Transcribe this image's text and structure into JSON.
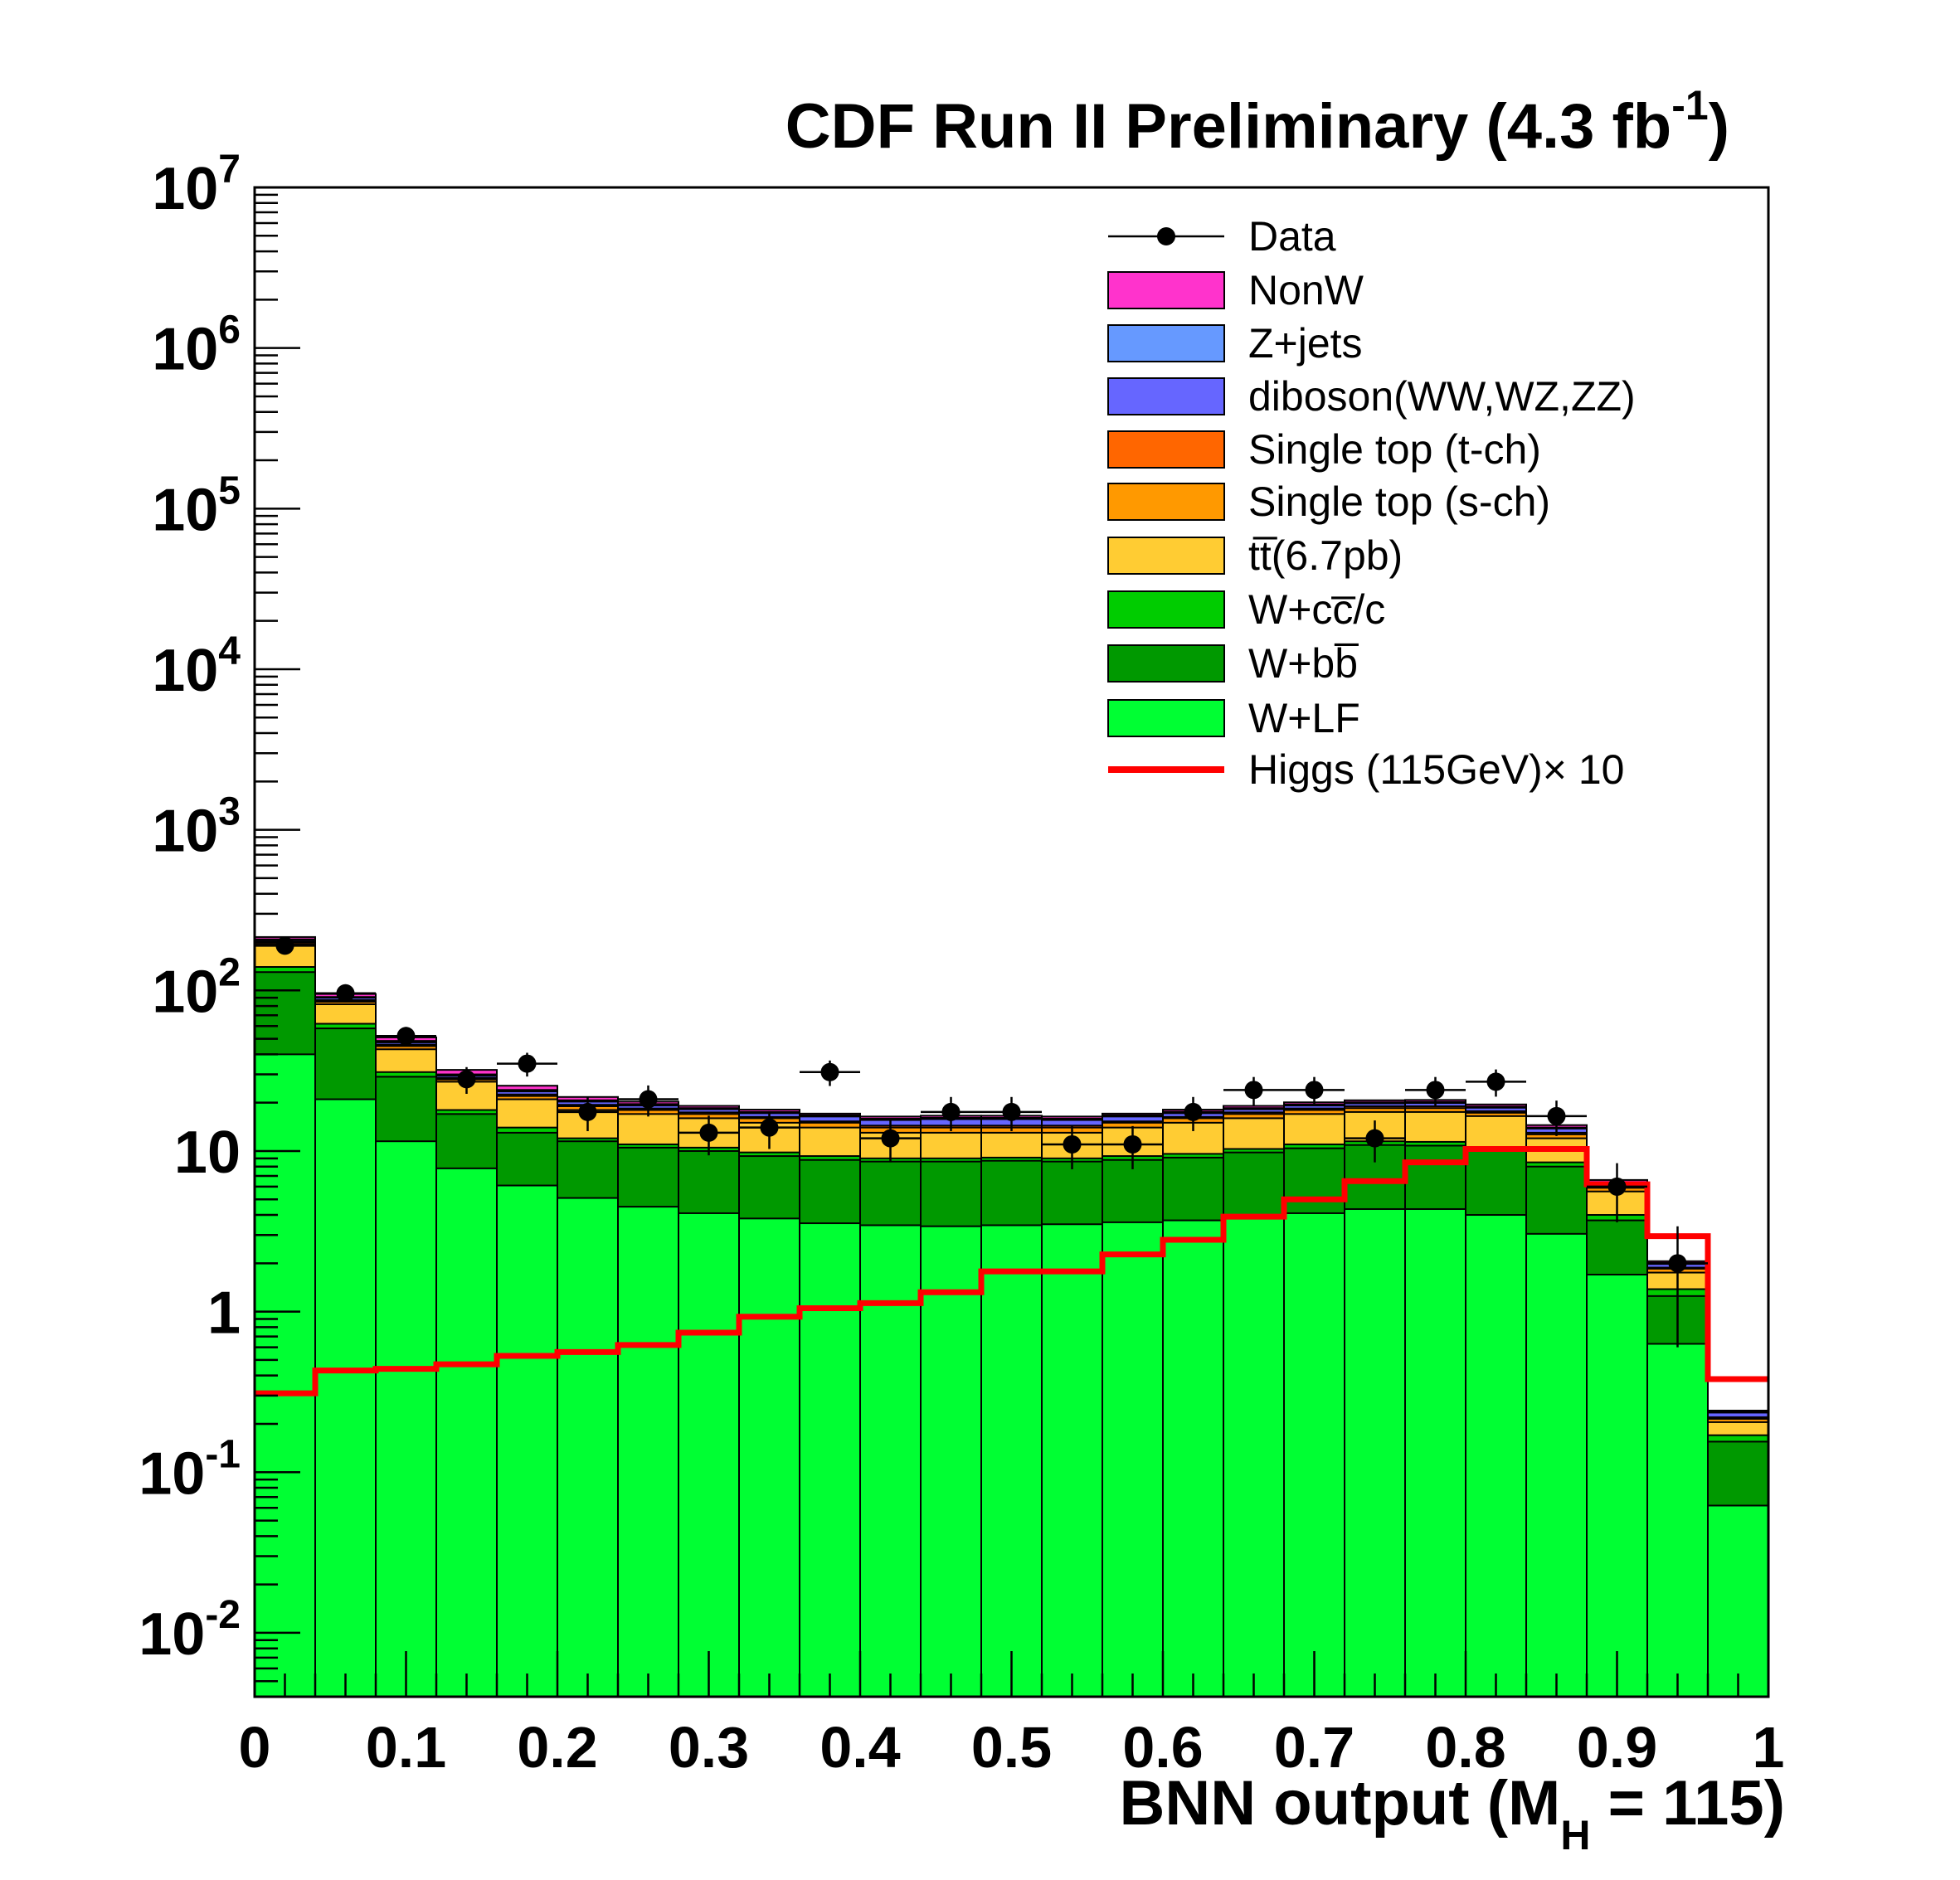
{
  "chart_data": {
    "type": "bar",
    "title": "CDF Run II Preliminary (4.3 fb",
    "title_exponent": "-1",
    "title_close": ")",
    "xlabel": "BNN output (M",
    "xlabel_subscript": "H",
    "xlabel_close": " = 115)",
    "ylabel": "",
    "log_y": true,
    "xlim": [
      0,
      1
    ],
    "ylim": [
      0.004,
      10000000
    ],
    "grid": false,
    "legend_position": "top-right",
    "x_ticks": [
      "0",
      "0.1",
      "0.2",
      "0.3",
      "0.4",
      "0.5",
      "0.6",
      "0.7",
      "0.8",
      "0.9",
      "1"
    ],
    "y_ticks": [
      {
        "base": "10",
        "exp": "-2",
        "value": 0.01
      },
      {
        "base": "10",
        "exp": "-1",
        "value": 0.1
      },
      {
        "base": "1",
        "exp": "",
        "value": 1
      },
      {
        "base": "10",
        "exp": "",
        "value": 10
      },
      {
        "base": "10",
        "exp": "2",
        "value": 100
      },
      {
        "base": "10",
        "exp": "3",
        "value": 1000
      },
      {
        "base": "10",
        "exp": "4",
        "value": 10000
      },
      {
        "base": "10",
        "exp": "5",
        "value": 100000
      },
      {
        "base": "10",
        "exp": "6",
        "value": 1000000
      },
      {
        "base": "10",
        "exp": "7",
        "value": 10000000
      }
    ],
    "bin_edges": [
      0,
      0.04,
      0.08,
      0.12,
      0.16,
      0.2,
      0.24,
      0.28,
      0.32,
      0.36,
      0.4,
      0.44,
      0.48,
      0.52,
      0.56,
      0.6,
      0.64,
      0.68,
      0.72,
      0.76,
      0.8,
      0.84,
      0.88,
      0.92,
      0.96,
      1.0
    ],
    "stacked_series": [
      {
        "name": "W+LF",
        "color": "#00ff33",
        "cumulative": [
          40,
          21,
          11.5,
          7.8,
          6.1,
          5.1,
          4.5,
          4.1,
          3.8,
          3.55,
          3.45,
          3.4,
          3.45,
          3.5,
          3.6,
          3.7,
          3.9,
          4.1,
          4.35,
          4.35,
          4.0,
          3.05,
          1.7,
          0.63,
          0.062
        ]
      },
      {
        "name": "W+bb̅",
        "color": "#009900",
        "cumulative": [
          130,
          58,
          29,
          17,
          13,
          11.5,
          10.5,
          10,
          9.3,
          8.8,
          8.6,
          8.6,
          8.7,
          8.6,
          8.8,
          9.1,
          9.8,
          10.4,
          10.9,
          10.8,
          10.0,
          8.0,
          3.7,
          1.25,
          0.155
        ]
      },
      {
        "name": "W+cc̅/c",
        "color": "#00cc00",
        "cumulative": [
          140,
          62,
          31,
          18,
          14,
          12,
          11,
          10.5,
          9.8,
          9.3,
          9.0,
          9.0,
          9.1,
          9.0,
          9.3,
          9.6,
          10.3,
          11.0,
          11.5,
          11.4,
          10.6,
          8.5,
          4.0,
          1.38,
          0.17
        ]
      },
      {
        "name": "tt̅(6.7pb)",
        "color": "#ffcc33",
        "cumulative": [
          190,
          82,
          43,
          27,
          21,
          18,
          17,
          16,
          15,
          14,
          13,
          13,
          13,
          13,
          14,
          15,
          16,
          17,
          17.5,
          17.5,
          16.5,
          12,
          5.6,
          1.75,
          0.205
        ]
      },
      {
        "name": "Single top (s-ch)",
        "color": "#ff9900",
        "cumulative": [
          195,
          85,
          45,
          28,
          22,
          19,
          18,
          17,
          16,
          15,
          14,
          14,
          14,
          14,
          15,
          16,
          17,
          18,
          18.5,
          18.5,
          17.3,
          12.7,
          5.9,
          1.85,
          0.215
        ]
      },
      {
        "name": "Single top (t-ch)",
        "color": "#ff6600",
        "cumulative": [
          200,
          87,
          46,
          28.6,
          22.5,
          19.4,
          18.4,
          17.4,
          16.3,
          15.3,
          14.4,
          14.4,
          14.4,
          14.4,
          15.3,
          16.3,
          17.4,
          18.4,
          19,
          19,
          17.7,
          13,
          6.0,
          1.88,
          0.22
        ]
      },
      {
        "name": "diboson(WW,WZ,ZZ)",
        "color": "#6666ff",
        "cumulative": [
          205,
          90,
          47.5,
          29.5,
          23.5,
          20.3,
          19.2,
          18.2,
          17.2,
          16.4,
          15.6,
          15.8,
          15.8,
          15.6,
          16.4,
          17.2,
          18.2,
          19.2,
          19.8,
          19.9,
          18.6,
          13.8,
          6.3,
          1.98,
          0.235
        ]
      },
      {
        "name": "Z+jets",
        "color": "#6699ff",
        "cumulative": [
          208,
          91,
          48.5,
          30,
          24,
          20.7,
          19.6,
          18.5,
          17.5,
          16.7,
          15.9,
          16.1,
          16.1,
          15.9,
          16.7,
          17.5,
          18.5,
          19.5,
          20.1,
          20.2,
          18.9,
          14,
          6.4,
          2.01,
          0.238
        ]
      },
      {
        "name": "NonW",
        "color": "#ff33cc",
        "cumulative": [
          215,
          95,
          51,
          32,
          25.5,
          21.7,
          20.3,
          19.1,
          18.1,
          17.1,
          16.4,
          16.6,
          16.6,
          16.4,
          17.1,
          18.1,
          19.1,
          20.1,
          20.7,
          20.8,
          19.5,
          14.5,
          6.6,
          2.06,
          0.242
        ]
      }
    ],
    "data_points": {
      "name": "Data",
      "x": [
        0.02,
        0.06,
        0.1,
        0.14,
        0.18,
        0.22,
        0.26,
        0.3,
        0.34,
        0.38,
        0.42,
        0.46,
        0.5,
        0.54,
        0.58,
        0.62,
        0.66,
        0.7,
        0.74,
        0.78,
        0.82,
        0.86,
        0.9,
        0.94
      ],
      "y": [
        190,
        96,
        52,
        28,
        35,
        17.5,
        21,
        13,
        14,
        31,
        12,
        17.5,
        17.5,
        11,
        11,
        17.5,
        24,
        24,
        12,
        24,
        27,
        16.5,
        6,
        2
      ],
      "err": [
        14,
        9.8,
        7.2,
        5.3,
        5.9,
        4.2,
        4.6,
        3.6,
        3.7,
        5.6,
        3.5,
        4.2,
        4.2,
        3.3,
        3.3,
        4.2,
        4.9,
        4.9,
        3.5,
        4.9,
        5.2,
        4.1,
        2.4,
        1.4
      ]
    },
    "signal": {
      "name": "Higgs (115GeV)× 10",
      "color": "#ff0000",
      "values": [
        0.31,
        0.43,
        0.44,
        0.47,
        0.53,
        0.56,
        0.62,
        0.74,
        0.93,
        1.05,
        1.13,
        1.32,
        1.78,
        1.78,
        2.27,
        2.8,
        3.9,
        5.0,
        6.5,
        8.5,
        10.3,
        10.3,
        6.2,
        2.95,
        0.38
      ]
    },
    "legend": [
      {
        "label": "Data",
        "kind": "data"
      },
      {
        "label": "NonW",
        "kind": "box",
        "color": "#ff33cc"
      },
      {
        "label": "Z+jets",
        "kind": "box",
        "color": "#6699ff"
      },
      {
        "label": "diboson(WW,WZ,ZZ)",
        "kind": "box",
        "color": "#6666ff"
      },
      {
        "label": "Single top (t-ch)",
        "kind": "box",
        "color": "#ff6600"
      },
      {
        "label": "Single top (s-ch)",
        "kind": "box",
        "color": "#ff9900"
      },
      {
        "label": "tt̅(6.7pb)",
        "kind": "box",
        "color": "#ffcc33"
      },
      {
        "label": "W+cc̅/c",
        "kind": "box",
        "color": "#00cc00"
      },
      {
        "label": "W+bb̅",
        "kind": "box",
        "color": "#009900"
      },
      {
        "label": "W+LF",
        "kind": "box",
        "color": "#00ff33"
      },
      {
        "label": "Higgs (115GeV)× 10",
        "kind": "line",
        "color": "#ff0000"
      }
    ]
  }
}
